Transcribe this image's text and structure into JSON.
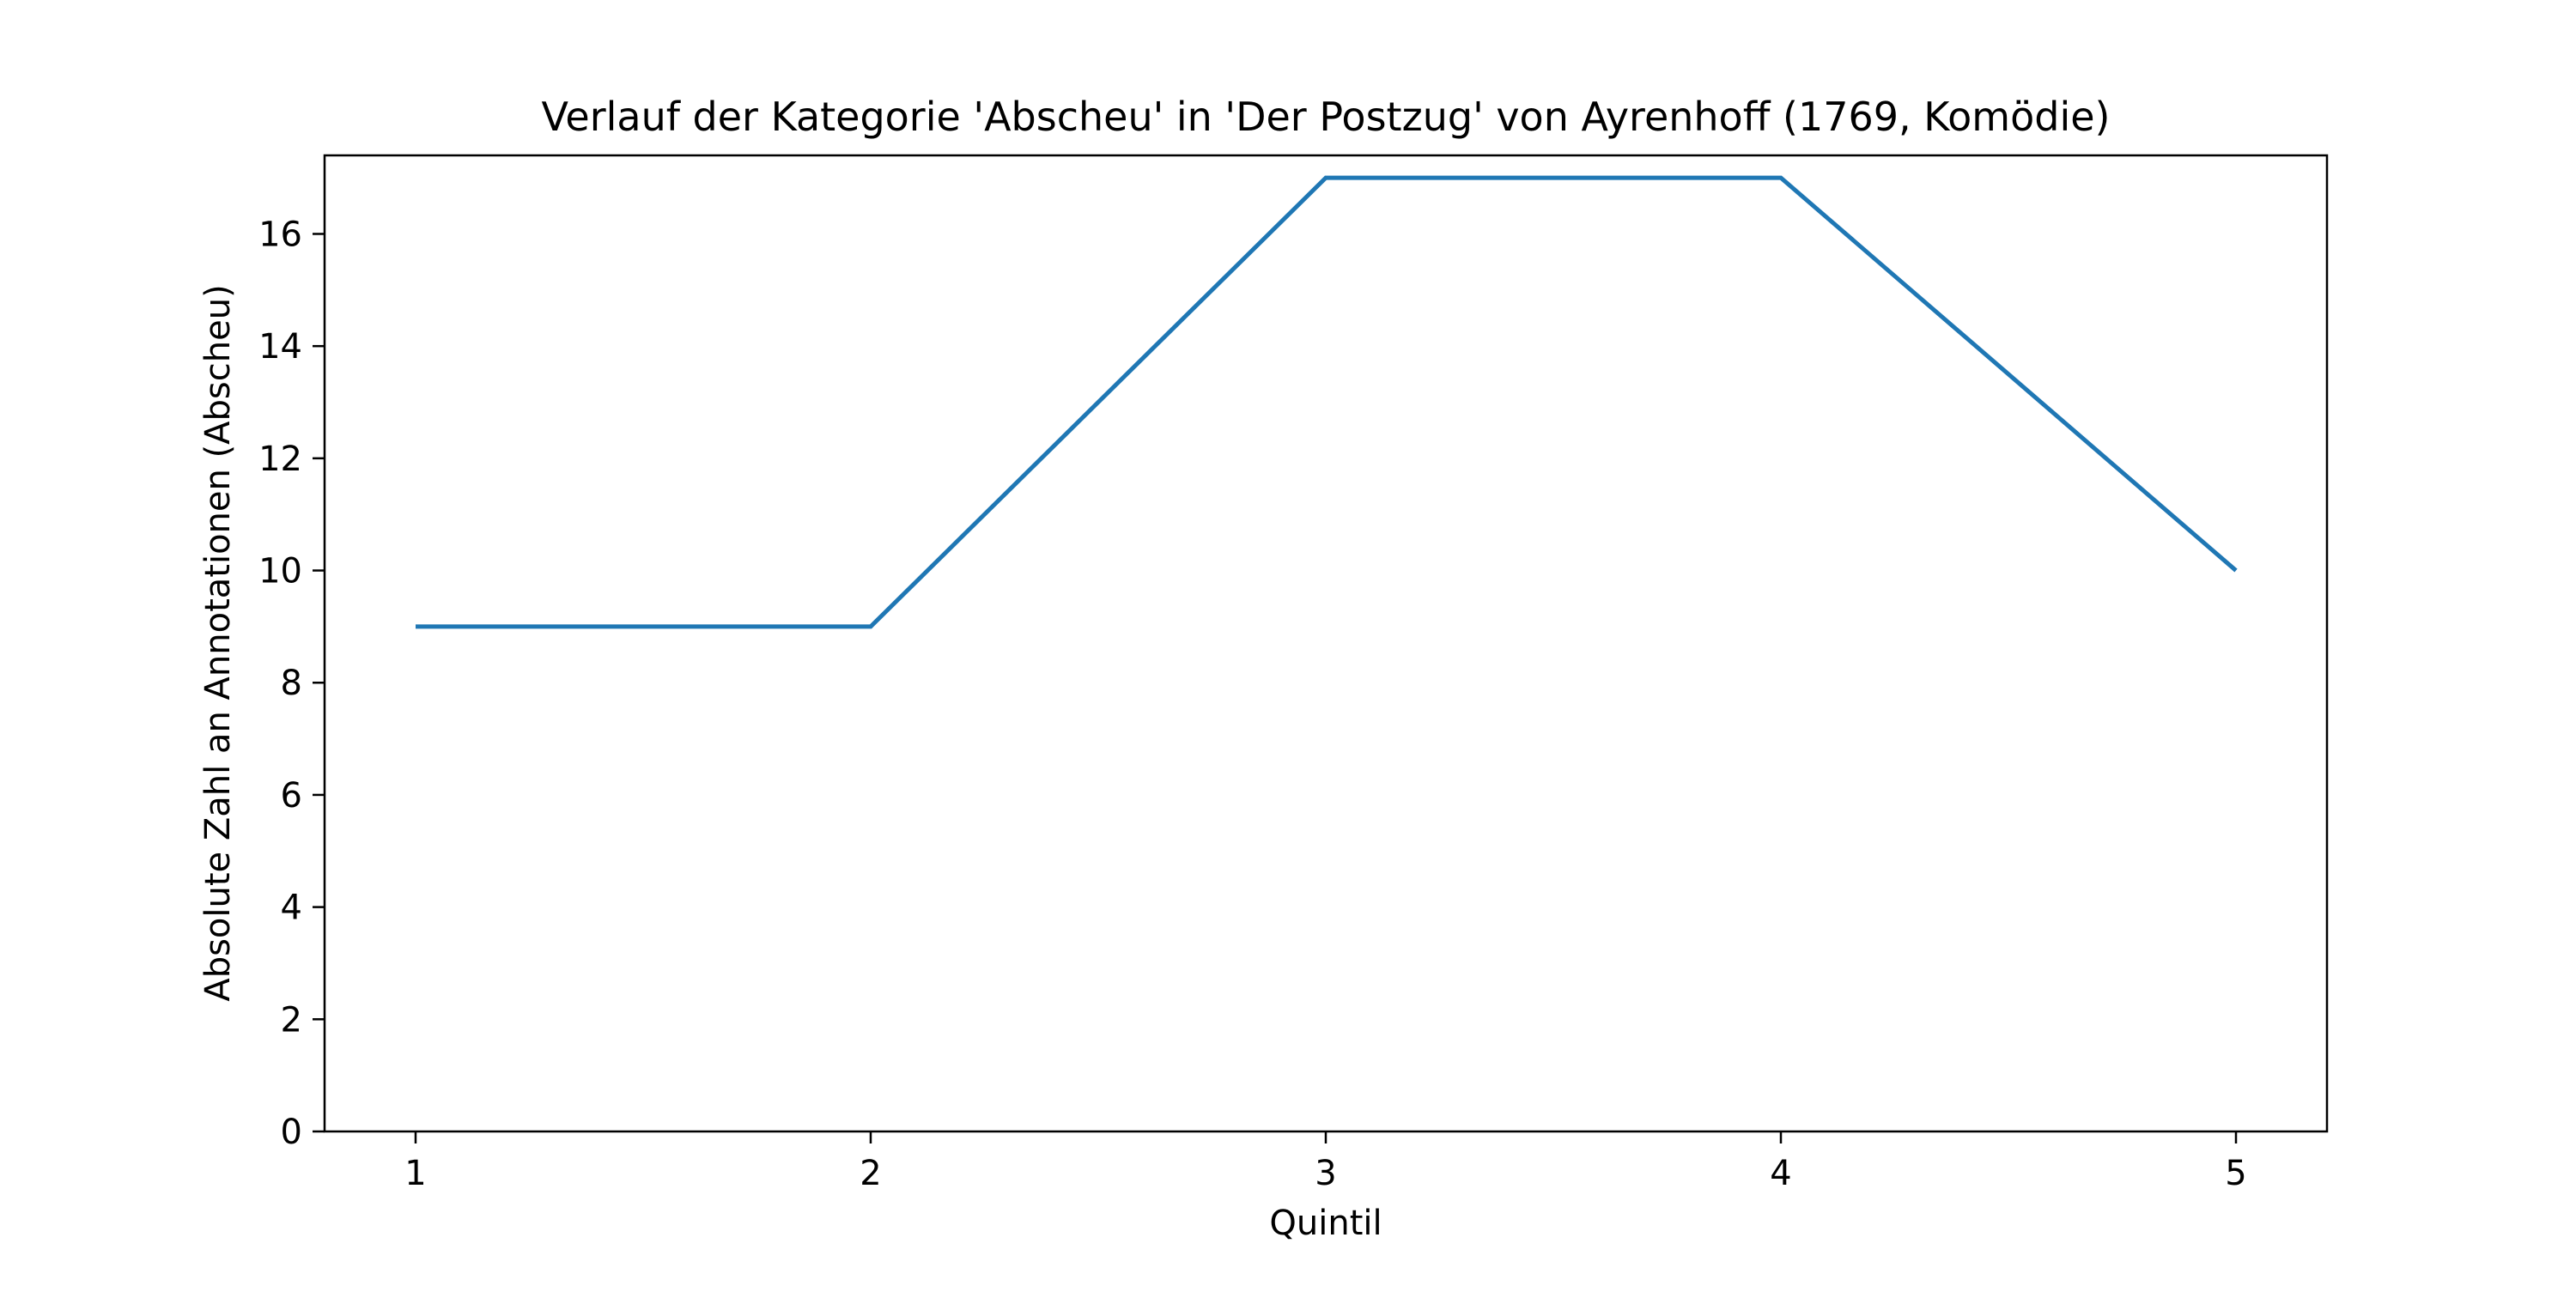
{
  "chart_data": {
    "type": "line",
    "title": "Verlauf der Kategorie 'Abscheu' in 'Der Postzug' von Ayrenhoff (1769, Komödie)",
    "xlabel": "Quintil",
    "ylabel": "Absolute Zahl an Annotationen (Abscheu)",
    "x": [
      1,
      2,
      3,
      4,
      5
    ],
    "series": [
      {
        "values": [
          9,
          9,
          17,
          17,
          10
        ],
        "color": "#1f77b4"
      }
    ],
    "xlim": [
      0.8,
      5.2
    ],
    "ylim": [
      0,
      17.4
    ],
    "xticks": [
      1,
      2,
      3,
      4,
      5
    ],
    "yticks": [
      0,
      2,
      4,
      6,
      8,
      10,
      12,
      14,
      16
    ],
    "grid": false,
    "legend": "none"
  }
}
